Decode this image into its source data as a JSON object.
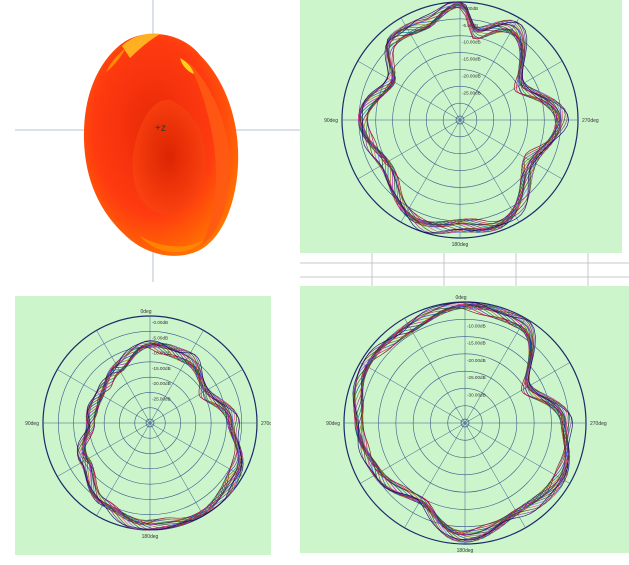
{
  "pattern_3d": {
    "axis_label": "+z",
    "colors": {
      "body": "#ff3a10",
      "highlight": "#ffd21a",
      "edge": "#ff8c00"
    }
  },
  "chart_data": [
    {
      "type": "polar",
      "panel": "top-right",
      "angle_labels": {
        "top": "0deg",
        "left": "90deg",
        "right": "270deg",
        "bottom": "180deg"
      },
      "radial_labels": [
        "-0.00dB",
        "-5.00dB",
        "-10.00dB",
        "-15.00dB",
        "-20.00dB",
        "-25.00dB"
      ],
      "rlim_db": [
        -30,
        0
      ],
      "series_count": 18,
      "envelope_db": [
        {
          "deg": 0,
          "db": -0.5
        },
        {
          "deg": 20,
          "db": -4
        },
        {
          "deg": 40,
          "db": -3
        },
        {
          "deg": 60,
          "db": -10
        },
        {
          "deg": 90,
          "db": -5
        },
        {
          "deg": 120,
          "db": -8
        },
        {
          "deg": 160,
          "db": -2
        },
        {
          "deg": 180,
          "db": -3
        },
        {
          "deg": 200,
          "db": -1.5
        },
        {
          "deg": 240,
          "db": -9
        },
        {
          "deg": 270,
          "db": -4.5
        },
        {
          "deg": 300,
          "db": -12
        },
        {
          "deg": 330,
          "db": -3
        },
        {
          "deg": 350,
          "db": -7
        }
      ]
    },
    {
      "type": "polar",
      "panel": "bottom-left",
      "angle_labels": {
        "top": "0deg",
        "left": "90deg",
        "right": "270deg",
        "bottom": "180deg"
      },
      "radial_labels": [
        "-0.00dB",
        "-5.00dB",
        "-10.00dB",
        "-15.00dB",
        "-20.00dB",
        "-25.00dB"
      ],
      "rlim_db": [
        -30,
        0
      ],
      "series_count": 18,
      "envelope_db": [
        {
          "deg": 0,
          "db": -8
        },
        {
          "deg": 30,
          "db": -12
        },
        {
          "deg": 60,
          "db": -14
        },
        {
          "deg": 90,
          "db": -13
        },
        {
          "deg": 120,
          "db": -9
        },
        {
          "deg": 150,
          "db": -4
        },
        {
          "deg": 180,
          "db": -1
        },
        {
          "deg": 210,
          "db": -0.5
        },
        {
          "deg": 240,
          "db": -2
        },
        {
          "deg": 270,
          "db": -7
        },
        {
          "deg": 300,
          "db": -12
        },
        {
          "deg": 330,
          "db": -9
        }
      ]
    },
    {
      "type": "polar",
      "panel": "bottom-right",
      "angle_labels": {
        "top": "0deg",
        "left": "90deg",
        "right": "270deg",
        "bottom": "180deg"
      },
      "radial_labels": [
        "-5.00dB",
        "-10.00dB",
        "-15.00dB",
        "-20.00dB",
        "-25.00dB",
        "-30.00dB"
      ],
      "rlim_db": [
        -35,
        0
      ],
      "series_count": 18,
      "envelope_db": [
        {
          "deg": 0,
          "db": -1
        },
        {
          "deg": 30,
          "db": -3
        },
        {
          "deg": 60,
          "db": -2
        },
        {
          "deg": 90,
          "db": -4
        },
        {
          "deg": 120,
          "db": -6
        },
        {
          "deg": 150,
          "db": -9
        },
        {
          "deg": 180,
          "db": -2
        },
        {
          "deg": 210,
          "db": -5
        },
        {
          "deg": 240,
          "db": -3
        },
        {
          "deg": 270,
          "db": -6
        },
        {
          "deg": 300,
          "db": -14
        },
        {
          "deg": 330,
          "db": -2
        }
      ]
    }
  ],
  "series_colors": [
    "#7a0000",
    "#d4004a",
    "#3a2a9a",
    "#1e7b1e",
    "#b06000",
    "#5a005a",
    "#007a7a",
    "#303030",
    "#c000c0",
    "#8a6a00",
    "#0040b0",
    "#a03030",
    "#205020",
    "#6060ff",
    "#ff4080",
    "#404000",
    "#902090",
    "#000060"
  ]
}
